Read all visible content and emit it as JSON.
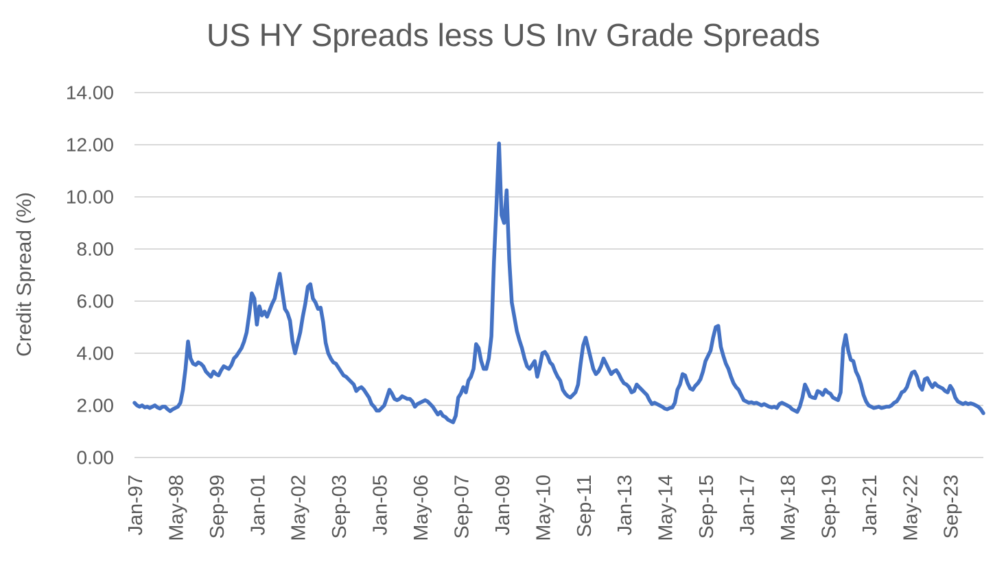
{
  "chart_data": {
    "type": "line",
    "title": "US HY Spreads less US Inv Grade Spreads",
    "ylabel": "Credit Spread (%)",
    "xlabel": "",
    "ylim": [
      0,
      14
    ],
    "ytick_step": 2,
    "ytick_labels": [
      "0.00",
      "2.00",
      "4.00",
      "6.00",
      "8.00",
      "10.00",
      "12.00",
      "14.00"
    ],
    "grid": "horizontal",
    "legend_position": "none",
    "line_color": "#4472C4",
    "gridline_color": "#D9D9D9",
    "text_color": "#595959",
    "x_unit": "month",
    "x_monthly_from": "Jan-1997",
    "x_monthly_to": "Oct-2024",
    "xtick_labels": [
      "Jan-97",
      "May-98",
      "Sep-99",
      "Jan-01",
      "May-02",
      "Sep-03",
      "Jan-05",
      "May-06",
      "Sep-07",
      "Jan-09",
      "May-10",
      "Sep-11",
      "Jan-13",
      "May-14",
      "Sep-15",
      "Jan-17",
      "May-18",
      "Sep-19",
      "Jan-21",
      "May-22",
      "Sep-23"
    ],
    "xtick_month_indices": [
      0,
      16,
      32,
      48,
      64,
      80,
      96,
      112,
      128,
      144,
      160,
      176,
      192,
      208,
      224,
      240,
      256,
      272,
      288,
      304,
      320
    ],
    "values": [
      2.1,
      2.0,
      1.95,
      2.0,
      1.92,
      1.95,
      1.9,
      1.95,
      2.0,
      1.92,
      1.88,
      1.95,
      1.95,
      1.85,
      1.78,
      1.85,
      1.9,
      1.95,
      2.1,
      2.6,
      3.4,
      4.45,
      3.8,
      3.6,
      3.55,
      3.65,
      3.6,
      3.5,
      3.3,
      3.2,
      3.1,
      3.3,
      3.2,
      3.15,
      3.35,
      3.5,
      3.45,
      3.4,
      3.55,
      3.8,
      3.9,
      4.05,
      4.2,
      4.45,
      4.8,
      5.5,
      6.3,
      6.1,
      5.1,
      5.8,
      5.45,
      5.6,
      5.4,
      5.65,
      5.9,
      6.1,
      6.6,
      7.05,
      6.35,
      5.7,
      5.55,
      5.25,
      4.45,
      4.0,
      4.4,
      4.8,
      5.4,
      5.9,
      6.55,
      6.65,
      6.1,
      5.95,
      5.7,
      5.75,
      5.2,
      4.4,
      4.0,
      3.8,
      3.65,
      3.6,
      3.45,
      3.3,
      3.15,
      3.1,
      3.0,
      2.9,
      2.8,
      2.55,
      2.65,
      2.7,
      2.6,
      2.45,
      2.3,
      2.05,
      1.95,
      1.8,
      1.8,
      1.9,
      2.0,
      2.3,
      2.6,
      2.45,
      2.25,
      2.2,
      2.25,
      2.35,
      2.3,
      2.25,
      2.25,
      2.15,
      1.95,
      2.05,
      2.1,
      2.15,
      2.2,
      2.15,
      2.05,
      1.95,
      1.8,
      1.65,
      1.75,
      1.6,
      1.55,
      1.45,
      1.4,
      1.35,
      1.6,
      2.3,
      2.45,
      2.7,
      2.5,
      2.95,
      3.1,
      3.4,
      4.35,
      4.2,
      3.7,
      3.4,
      3.4,
      3.8,
      4.65,
      7.5,
      9.7,
      12.05,
      9.3,
      9.0,
      10.25,
      7.6,
      5.95,
      5.4,
      4.85,
      4.5,
      4.2,
      3.8,
      3.5,
      3.4,
      3.55,
      3.7,
      3.1,
      3.5,
      4.0,
      4.05,
      3.9,
      3.65,
      3.55,
      3.3,
      3.1,
      2.95,
      2.6,
      2.45,
      2.35,
      2.3,
      2.4,
      2.5,
      2.8,
      3.6,
      4.3,
      4.6,
      4.2,
      3.8,
      3.4,
      3.2,
      3.3,
      3.5,
      3.8,
      3.6,
      3.4,
      3.2,
      3.3,
      3.35,
      3.2,
      3.0,
      2.85,
      2.8,
      2.7,
      2.5,
      2.55,
      2.8,
      2.7,
      2.6,
      2.5,
      2.4,
      2.2,
      2.05,
      2.1,
      2.05,
      2.0,
      1.95,
      1.88,
      1.85,
      1.9,
      1.92,
      2.1,
      2.6,
      2.8,
      3.2,
      3.15,
      2.85,
      2.65,
      2.6,
      2.75,
      2.85,
      3.0,
      3.3,
      3.7,
      3.9,
      4.1,
      4.6,
      5.0,
      5.05,
      4.25,
      3.9,
      3.6,
      3.4,
      3.1,
      2.85,
      2.7,
      2.6,
      2.4,
      2.2,
      2.15,
      2.1,
      2.12,
      2.08,
      2.1,
      2.05,
      2.0,
      2.05,
      2.0,
      1.95,
      1.92,
      1.95,
      1.9,
      2.05,
      2.1,
      2.05,
      2.0,
      1.95,
      1.85,
      1.8,
      1.75,
      1.95,
      2.3,
      2.8,
      2.6,
      2.35,
      2.3,
      2.28,
      2.55,
      2.5,
      2.4,
      2.6,
      2.5,
      2.45,
      2.3,
      2.25,
      2.2,
      2.5,
      4.2,
      4.7,
      4.1,
      3.75,
      3.7,
      3.3,
      3.1,
      2.8,
      2.4,
      2.15,
      2.0,
      1.95,
      1.9,
      1.92,
      1.95,
      1.9,
      1.92,
      1.95,
      1.95,
      2.0,
      2.1,
      2.15,
      2.3,
      2.5,
      2.55,
      2.7,
      3.0,
      3.25,
      3.3,
      3.1,
      2.75,
      2.6,
      3.0,
      3.05,
      2.85,
      2.7,
      2.85,
      2.75,
      2.7,
      2.65,
      2.55,
      2.5,
      2.75,
      2.6,
      2.3,
      2.15,
      2.1,
      2.05,
      2.1,
      2.05,
      2.08,
      2.05,
      2.0,
      1.95,
      1.85,
      1.7
    ]
  }
}
